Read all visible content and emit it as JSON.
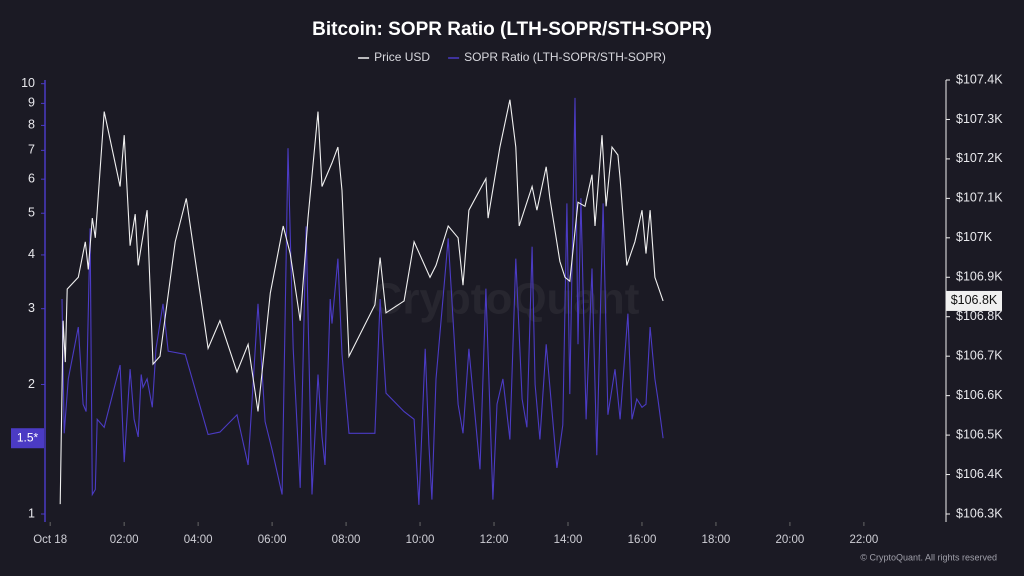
{
  "chart_data": {
    "type": "line",
    "title": "Bitcoin: SOPR Ratio (LTH-SOPR/STH-SOPR)",
    "watermark": "CryptoQuant",
    "footer": "© CryptoQuant. All rights reserved",
    "xlim": [
      -0.14,
      24.22
    ],
    "xticks": [
      {
        "value": 0,
        "label": "Oct 18"
      },
      {
        "value": 2,
        "label": "02:00"
      },
      {
        "value": 4,
        "label": "04:00"
      },
      {
        "value": 6,
        "label": "06:00"
      },
      {
        "value": 8,
        "label": "08:00"
      },
      {
        "value": 10,
        "label": "10:00"
      },
      {
        "value": 12,
        "label": "12:00"
      },
      {
        "value": 14,
        "label": "14:00"
      },
      {
        "value": 16,
        "label": "16:00"
      },
      {
        "value": 18,
        "label": "18:00"
      },
      {
        "value": 20,
        "label": "20:00"
      },
      {
        "value": 22,
        "label": "22:00"
      }
    ],
    "ylog": true,
    "ylim": [
      1,
      10.2
    ],
    "yticks": [
      1,
      2,
      3,
      4,
      5,
      6,
      7,
      8,
      9,
      10
    ],
    "y2lim": [
      106.3,
      107.4
    ],
    "y2ticks": [
      {
        "value": 106.3,
        "label": "$106.3K"
      },
      {
        "value": 106.4,
        "label": "$106.4K"
      },
      {
        "value": 106.5,
        "label": "$106.5K"
      },
      {
        "value": 106.6,
        "label": "$106.6K"
      },
      {
        "value": 106.7,
        "label": "$106.7K"
      },
      {
        "value": 106.8,
        "label": "$106.8K"
      },
      {
        "value": 106.9,
        "label": "$106.9K"
      },
      {
        "value": 107.0,
        "label": "$107K"
      },
      {
        "value": 107.1,
        "label": "$107.1K"
      },
      {
        "value": 107.2,
        "label": "$107.2K"
      },
      {
        "value": 107.3,
        "label": "$107.3K"
      },
      {
        "value": 107.4,
        "label": "$107.4K"
      }
    ],
    "series": [
      {
        "name": "Price USD",
        "color": "#f0f0f0",
        "axis": "y2",
        "last_label": "$106.8K",
        "x": [
          0.27,
          0.35,
          0.41,
          0.46,
          0.76,
          0.95,
          1.03,
          1.14,
          1.22,
          1.46,
          1.89,
          2.0,
          2.16,
          2.3,
          2.38,
          2.62,
          2.78,
          2.97,
          3.38,
          3.68,
          4.27,
          4.59,
          5.05,
          5.35,
          5.62,
          5.95,
          6.3,
          6.49,
          6.76,
          6.97,
          7.24,
          7.35,
          7.62,
          7.78,
          7.89,
          8.08,
          8.78,
          8.92,
          9.08,
          9.57,
          9.84,
          10.27,
          10.43,
          10.76,
          11.03,
          11.16,
          11.32,
          11.78,
          11.84,
          12.16,
          12.43,
          12.59,
          12.68,
          12.89,
          13.03,
          13.16,
          13.41,
          13.51,
          13.78,
          13.92,
          14.05,
          14.27,
          14.46,
          14.65,
          14.73,
          14.92,
          15.03,
          15.19,
          15.35,
          15.41,
          15.59,
          15.81,
          16.0,
          16.11,
          16.22,
          16.35,
          16.57
        ],
        "values": [
          106.325,
          106.79,
          106.685,
          106.87,
          106.9,
          106.99,
          106.92,
          107.05,
          107.0,
          107.32,
          107.13,
          107.26,
          106.98,
          107.06,
          106.93,
          107.07,
          106.68,
          106.7,
          106.99,
          107.1,
          106.72,
          106.79,
          106.66,
          106.73,
          106.56,
          106.86,
          107.03,
          106.96,
          106.79,
          107.05,
          107.32,
          107.13,
          107.19,
          107.23,
          107.12,
          106.7,
          106.83,
          106.95,
          106.81,
          106.84,
          106.99,
          106.9,
          106.93,
          107.03,
          107.0,
          106.88,
          107.07,
          107.15,
          107.05,
          107.23,
          107.35,
          107.23,
          107.03,
          107.09,
          107.13,
          107.07,
          107.18,
          107.1,
          106.94,
          106.9,
          106.89,
          107.09,
          107.08,
          107.16,
          107.03,
          107.26,
          107.08,
          107.23,
          107.21,
          107.15,
          106.93,
          106.99,
          107.07,
          106.96,
          107.07,
          106.9,
          106.84
        ]
      },
      {
        "name": "SOPR Ratio (LTH-SOPR/STH-SOPR)",
        "color": "#4b3bc4",
        "axis": "y",
        "last_label": "1.5*",
        "x": [
          0.32,
          0.38,
          0.49,
          0.76,
          0.89,
          0.97,
          1.08,
          1.14,
          1.22,
          1.27,
          1.46,
          1.89,
          2.0,
          2.16,
          2.27,
          2.38,
          2.46,
          2.51,
          2.62,
          2.76,
          2.86,
          3.05,
          3.19,
          3.65,
          4.27,
          4.59,
          5.05,
          5.35,
          5.62,
          5.81,
          6.0,
          6.27,
          6.43,
          6.57,
          6.76,
          6.92,
          7.08,
          7.24,
          7.35,
          7.43,
          7.57,
          7.62,
          7.78,
          7.89,
          8.08,
          8.78,
          8.92,
          9.08,
          9.57,
          9.84,
          9.97,
          10.14,
          10.24,
          10.32,
          10.43,
          10.76,
          11.03,
          11.16,
          11.32,
          11.62,
          11.78,
          11.97,
          12.08,
          12.24,
          12.43,
          12.59,
          12.76,
          12.89,
          13.03,
          13.11,
          13.24,
          13.41,
          13.7,
          13.86,
          13.97,
          14.05,
          14.19,
          14.27,
          14.35,
          14.49,
          14.65,
          14.78,
          14.95,
          15.08,
          15.27,
          15.41,
          15.62,
          15.73,
          15.86,
          16.0,
          16.11,
          16.22,
          16.35,
          16.43,
          16.57
        ],
        "values": [
          3.16,
          1.54,
          2.06,
          2.72,
          1.8,
          1.73,
          4.61,
          1.11,
          1.14,
          1.66,
          1.59,
          2.22,
          1.32,
          2.17,
          1.66,
          1.51,
          2.11,
          1.97,
          2.06,
          1.77,
          2.42,
          3.08,
          2.39,
          2.35,
          1.53,
          1.55,
          1.7,
          1.3,
          3.08,
          1.64,
          1.41,
          1.11,
          7.08,
          2.42,
          1.15,
          4.66,
          1.11,
          2.11,
          1.51,
          1.3,
          3.16,
          2.77,
          3.92,
          2.35,
          1.54,
          1.54,
          3.16,
          1.91,
          1.73,
          1.66,
          1.05,
          2.42,
          1.45,
          1.08,
          2.06,
          4.37,
          1.8,
          1.54,
          2.42,
          1.27,
          3.34,
          1.08,
          1.8,
          2.06,
          1.49,
          3.92,
          1.85,
          1.59,
          4.18,
          2.0,
          1.49,
          2.48,
          1.28,
          1.61,
          5.27,
          1.9,
          9.27,
          2.48,
          5.42,
          1.66,
          3.72,
          1.37,
          5.27,
          1.7,
          2.17,
          1.66,
          2.92,
          1.66,
          1.85,
          1.77,
          1.8,
          2.72,
          2.06,
          1.85,
          1.5
        ]
      }
    ]
  }
}
